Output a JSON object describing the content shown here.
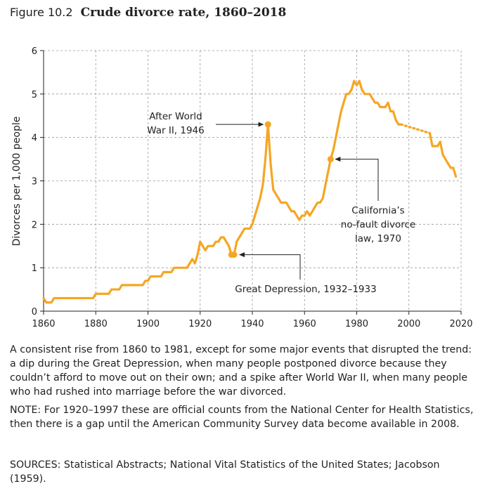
{
  "figure": {
    "label": "Figure 10.2",
    "title": "Crude divorce rate, 1860–2018"
  },
  "chart_data": {
    "type": "line",
    "title": "Crude divorce rate, 1860–2018",
    "xlabel": "",
    "ylabel": "Divorces per 1,000 people",
    "xlim": [
      1860,
      2020
    ],
    "ylim": [
      0,
      6
    ],
    "x_ticks": [
      1860,
      1880,
      1900,
      1920,
      1940,
      1960,
      1980,
      2000,
      2020
    ],
    "y_ticks": [
      0,
      1,
      2,
      3,
      4,
      5,
      6
    ],
    "grid": true,
    "line_color": "#f5a623",
    "series": [
      {
        "x": [
          1860,
          1861,
          1862,
          1863,
          1864,
          1865,
          1866,
          1867,
          1868,
          1869,
          1870,
          1871,
          1872,
          1873,
          1874,
          1875,
          1876,
          1877,
          1878,
          1879,
          1880,
          1881,
          1882,
          1883,
          1884,
          1885,
          1886,
          1887,
          1888,
          1889,
          1890,
          1891,
          1892,
          1893,
          1894,
          1895,
          1896,
          1897,
          1898,
          1899,
          1900,
          1901,
          1902,
          1903,
          1904,
          1905,
          1906,
          1907,
          1908,
          1909,
          1910,
          1911,
          1912,
          1913,
          1914,
          1915,
          1916,
          1917,
          1918,
          1919,
          1920,
          1921,
          1922,
          1923,
          1924,
          1925,
          1926,
          1927,
          1928,
          1929,
          1930,
          1931,
          1932,
          1933,
          1934,
          1935,
          1936,
          1937,
          1938,
          1939,
          1940,
          1941,
          1942,
          1943,
          1944,
          1945,
          1946,
          1947,
          1948,
          1949,
          1950,
          1951,
          1952,
          1953,
          1954,
          1955,
          1956,
          1957,
          1958,
          1959,
          1960,
          1961,
          1962,
          1963,
          1964,
          1965,
          1966,
          1967,
          1968,
          1969,
          1970,
          1971,
          1972,
          1973,
          1974,
          1975,
          1976,
          1977,
          1978,
          1979,
          1980,
          1981,
          1982,
          1983,
          1984,
          1985,
          1986,
          1987,
          1988,
          1989,
          1990,
          1991,
          1992,
          1993,
          1994,
          1995,
          1996,
          1997
        ],
        "y": [
          0.3,
          0.2,
          0.2,
          0.2,
          0.3,
          0.3,
          0.3,
          0.3,
          0.3,
          0.3,
          0.3,
          0.3,
          0.3,
          0.3,
          0.3,
          0.3,
          0.3,
          0.3,
          0.3,
          0.3,
          0.4,
          0.4,
          0.4,
          0.4,
          0.4,
          0.4,
          0.5,
          0.5,
          0.5,
          0.5,
          0.6,
          0.6,
          0.6,
          0.6,
          0.6,
          0.6,
          0.6,
          0.6,
          0.6,
          0.7,
          0.7,
          0.8,
          0.8,
          0.8,
          0.8,
          0.8,
          0.9,
          0.9,
          0.9,
          0.9,
          1.0,
          1.0,
          1.0,
          1.0,
          1.0,
          1.0,
          1.1,
          1.2,
          1.1,
          1.3,
          1.6,
          1.5,
          1.4,
          1.5,
          1.5,
          1.5,
          1.6,
          1.6,
          1.7,
          1.7,
          1.6,
          1.5,
          1.3,
          1.3,
          1.6,
          1.7,
          1.8,
          1.9,
          1.9,
          1.9,
          2.0,
          2.2,
          2.4,
          2.6,
          2.9,
          3.5,
          4.3,
          3.4,
          2.8,
          2.7,
          2.6,
          2.5,
          2.5,
          2.5,
          2.4,
          2.3,
          2.3,
          2.2,
          2.1,
          2.2,
          2.2,
          2.3,
          2.2,
          2.3,
          2.4,
          2.5,
          2.5,
          2.6,
          2.9,
          3.2,
          3.5,
          3.7,
          4.0,
          4.3,
          4.6,
          4.8,
          5.0,
          5.0,
          5.1,
          5.3,
          5.2,
          5.3,
          5.1,
          5.0,
          5.0,
          5.0,
          4.9,
          4.8,
          4.8,
          4.7,
          4.7,
          4.7,
          4.8,
          4.6,
          4.6,
          4.4,
          4.3,
          4.3
        ]
      },
      {
        "style": "dotted",
        "x": [
          1997,
          2008
        ],
        "y": [
          4.3,
          4.1
        ]
      },
      {
        "x": [
          2008,
          2009,
          2010,
          2011,
          2012,
          2013,
          2014,
          2015,
          2016,
          2017,
          2018
        ],
        "y": [
          4.1,
          3.8,
          3.8,
          3.8,
          3.9,
          3.6,
          3.5,
          3.4,
          3.3,
          3.3,
          3.1
        ]
      }
    ],
    "highlight_points": [
      {
        "x": 1946,
        "y": 4.3
      },
      {
        "x": 1932,
        "y": 1.3
      },
      {
        "x": 1933,
        "y": 1.3
      },
      {
        "x": 1970,
        "y": 3.5
      }
    ],
    "annotations": [
      {
        "lines": [
          "After World",
          "War II, 1946"
        ],
        "target_x": 1946,
        "target_y": 4.3
      },
      {
        "lines": [
          "California’s",
          "no-fault divorce",
          "law, 1970"
        ],
        "target_x": 1970,
        "target_y": 3.5
      },
      {
        "lines": [
          "Great Depression, 1932–1933"
        ],
        "target_x": 1933,
        "target_y": 1.3
      }
    ]
  },
  "caption": "A consistent rise from 1860 to 1981, except for some major events that disrupted the trend: a dip during the Great Depression, when many people postponed divorce because they couldn’t afford to move out on their own; and a spike after World War II, when many people who had rushed into marriage before the war divorced.",
  "note": "NOTE: For 1920–1997 these are official counts from the National Center for Health Statistics, then there is a gap until the American Community Survey data become available in 2008.",
  "sources": "SOURCES: Statistical Abstracts; National Vital Statistics of the United States; Jacobson (1959)."
}
